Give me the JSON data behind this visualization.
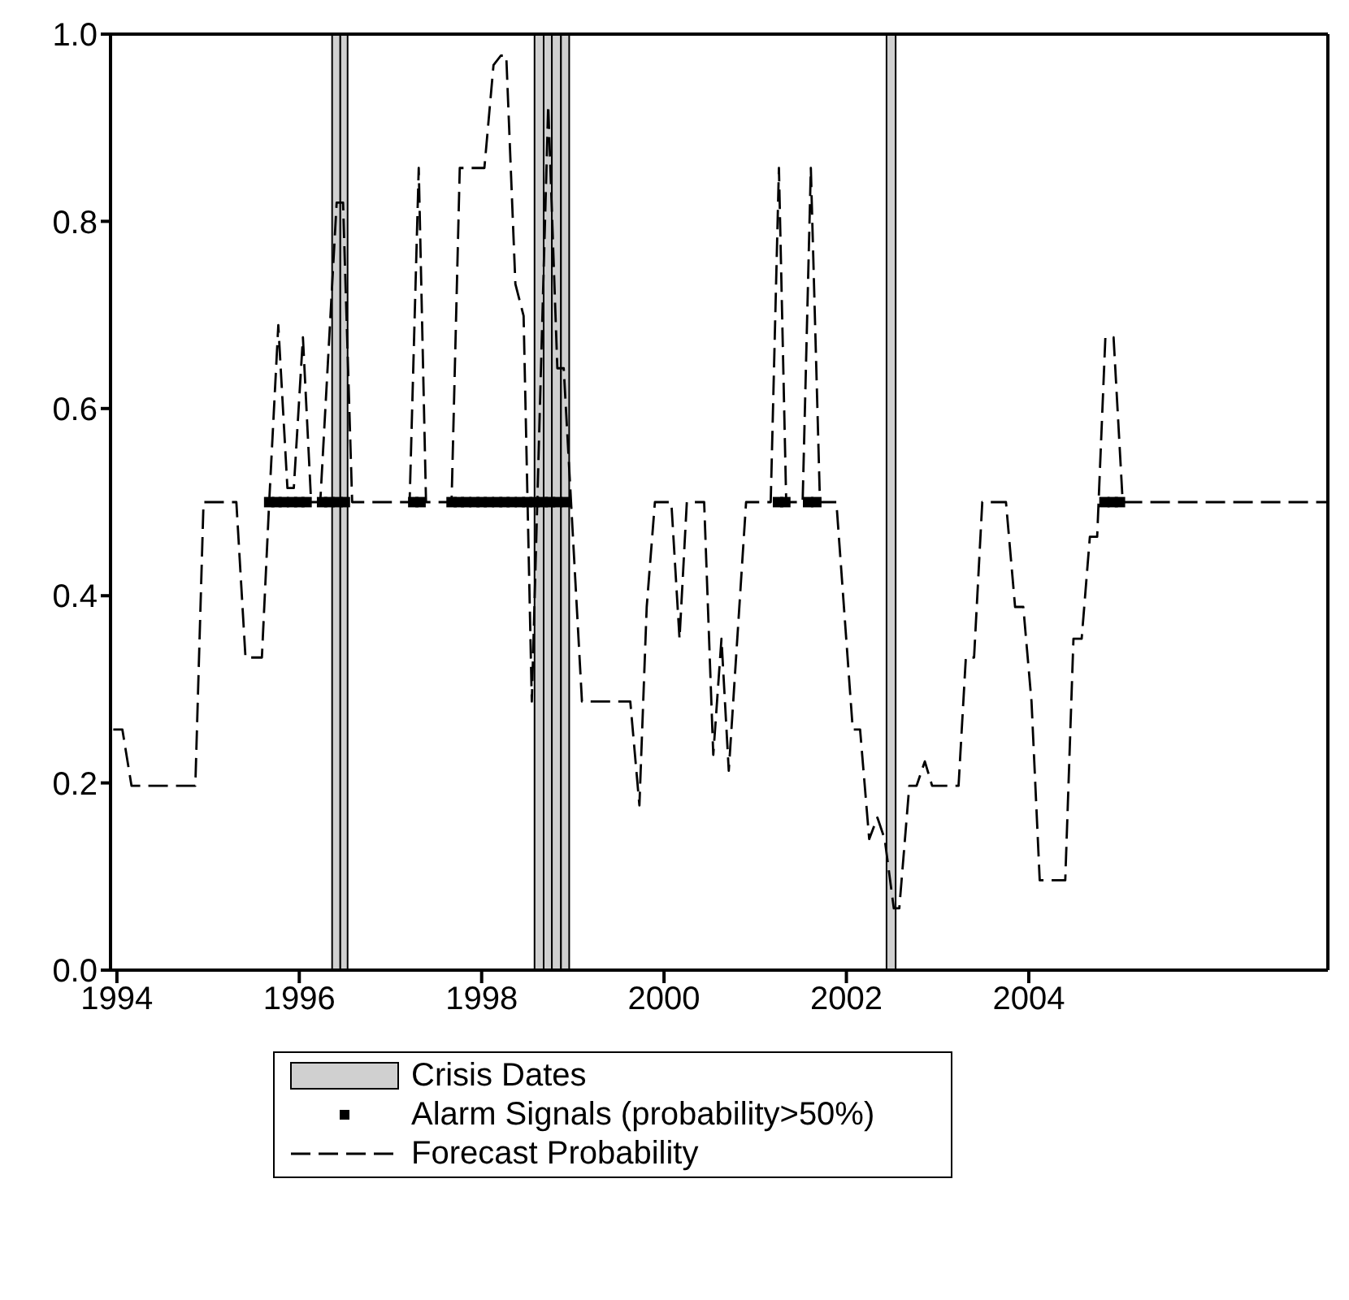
{
  "chart_data": {
    "type": "line",
    "xlim": [
      1993.93,
      2007.28
    ],
    "xticks": [
      1994,
      1996,
      1998,
      2000,
      2002,
      2004
    ],
    "ylim": [
      0,
      1
    ],
    "yticks": [
      {
        "value": 0,
        "label": "0.0"
      },
      {
        "value": 0.2,
        "label": "0.2"
      },
      {
        "value": 0.4,
        "label": "0.4"
      },
      {
        "value": 0.6,
        "label": "0.6"
      },
      {
        "value": 0.8,
        "label": "0.8"
      },
      {
        "value": 1,
        "label": "1.0"
      }
    ],
    "series": [
      {
        "name": "Alarm Signals (probability>50%)",
        "type": "scatter",
        "marker": "square",
        "color": "#000000",
        "x": [
          1995.67,
          1995.75,
          1995.83,
          1995.92,
          1996.0,
          1996.08,
          1996.25,
          1996.33,
          1996.42,
          1996.5,
          1997.25,
          1997.33,
          1997.67,
          1997.75,
          1997.83,
          1997.92,
          1998.0,
          1998.08,
          1998.17,
          1998.25,
          1998.33,
          1998.42,
          1998.5,
          1998.58,
          1998.67,
          1998.75,
          1998.83,
          1998.92,
          2001.25,
          2001.33,
          2001.58,
          2001.67,
          2004.83,
          2004.92,
          2005.0
        ],
        "values": [
          0.5,
          0.5,
          0.5,
          0.5,
          0.5,
          0.5,
          0.5,
          0.5,
          0.5,
          0.5,
          0.5,
          0.5,
          0.5,
          0.5,
          0.5,
          0.5,
          0.5,
          0.5,
          0.5,
          0.5,
          0.5,
          0.5,
          0.5,
          0.5,
          0.5,
          0.5,
          0.5,
          0.5,
          0.5,
          0.5,
          0.5,
          0.5,
          0.5,
          0.5,
          0.5
        ]
      },
      {
        "name": "Forecast Probability",
        "line_style": "dashed",
        "marker": "none",
        "color": "#000000",
        "x": [
          1993.96,
          1994.06,
          1994.16,
          1994.86,
          1994.95,
          1995.31,
          1995.41,
          1995.59,
          1995.67,
          1995.77,
          1995.87,
          1995.94,
          1996.04,
          1996.13,
          1996.23,
          1996.41,
          1996.48,
          1996.58,
          1997.21,
          1997.31,
          1997.39,
          1997.67,
          1997.76,
          1998.03,
          1998.13,
          1998.21,
          1998.27,
          1998.37,
          1998.46,
          1998.55,
          1998.73,
          1998.83,
          1998.9,
          1999.1,
          1999.63,
          1999.73,
          1999.81,
          1999.9,
          2000.08,
          2000.17,
          2000.25,
          2000.44,
          2000.54,
          2000.63,
          2000.71,
          2000.9,
          2001.17,
          2001.26,
          2001.34,
          2001.52,
          2001.61,
          2001.71,
          2001.89,
          2002.07,
          2002.15,
          2002.25,
          2002.34,
          2002.42,
          2002.52,
          2002.58,
          2002.69,
          2002.77,
          2002.86,
          2002.94,
          2003.23,
          2003.31,
          2003.4,
          2003.49,
          2003.75,
          2003.85,
          2003.94,
          2004.03,
          2004.12,
          2004.4,
          2004.49,
          2004.58,
          2004.67,
          2004.75,
          2004.84,
          2004.93,
          2005.03,
          2007.28
        ],
        "values": [
          0.257,
          0.257,
          0.197,
          0.197,
          0.5,
          0.5,
          0.334,
          0.334,
          0.5,
          0.689,
          0.515,
          0.515,
          0.676,
          0.5,
          0.5,
          0.82,
          0.82,
          0.5,
          0.5,
          0.857,
          0.5,
          0.5,
          0.857,
          0.857,
          0.967,
          0.977,
          0.977,
          0.733,
          0.699,
          0.287,
          0.924,
          0.643,
          0.643,
          0.287,
          0.287,
          0.176,
          0.388,
          0.5,
          0.5,
          0.354,
          0.5,
          0.5,
          0.23,
          0.354,
          0.213,
          0.5,
          0.5,
          0.857,
          0.5,
          0.5,
          0.857,
          0.5,
          0.5,
          0.257,
          0.257,
          0.14,
          0.163,
          0.14,
          0.066,
          0.066,
          0.197,
          0.197,
          0.223,
          0.197,
          0.197,
          0.334,
          0.334,
          0.5,
          0.5,
          0.388,
          0.388,
          0.287,
          0.096,
          0.096,
          0.354,
          0.354,
          0.463,
          0.463,
          0.676,
          0.676,
          0.5,
          0.5
        ]
      }
    ],
    "bands": [
      {
        "axis": "x",
        "from": 1996.36,
        "to": 1996.45,
        "label": "Crisis Dates",
        "color": "#d0d0d0"
      },
      {
        "axis": "x",
        "from": 1996.45,
        "to": 1996.53,
        "color": "#d0d0d0"
      },
      {
        "axis": "x",
        "from": 1998.58,
        "to": 1998.68,
        "color": "#d0d0d0"
      },
      {
        "axis": "x",
        "from": 1998.68,
        "to": 1998.77,
        "color": "#d0d0d0"
      },
      {
        "axis": "x",
        "from": 1998.77,
        "to": 1998.87,
        "color": "#d0d0d0"
      },
      {
        "axis": "x",
        "from": 1998.87,
        "to": 1998.96,
        "color": "#d0d0d0"
      },
      {
        "axis": "x",
        "from": 2002.44,
        "to": 2002.54,
        "color": "#d0d0d0"
      }
    ],
    "legend": "bottom",
    "grid": false
  }
}
